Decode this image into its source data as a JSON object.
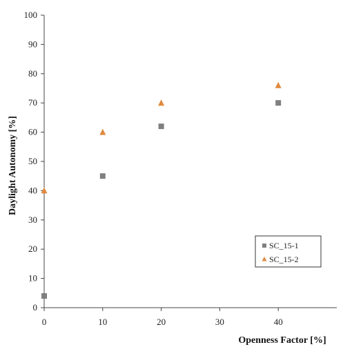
{
  "chart_data": {
    "type": "scatter",
    "title": "",
    "xlabel": "Openness Factor [%]",
    "ylabel": "Daylight Autonomy [%]",
    "xlim": [
      0,
      50
    ],
    "ylim": [
      0,
      100
    ],
    "xticks": [
      0,
      10,
      20,
      30,
      40
    ],
    "yticks": [
      0,
      10,
      20,
      30,
      40,
      50,
      60,
      70,
      80,
      90,
      100
    ],
    "grid": false,
    "legend_position": "bottom-right",
    "series": [
      {
        "name": "SC_15-1",
        "marker": "square",
        "color": "#7f7f7f",
        "points": [
          {
            "x": 0,
            "y": 4
          },
          {
            "x": 10,
            "y": 45
          },
          {
            "x": 20,
            "y": 62
          },
          {
            "x": 40,
            "y": 70
          }
        ]
      },
      {
        "name": "SC_15-2",
        "marker": "triangle",
        "color": "#e0893e",
        "points": [
          {
            "x": 0,
            "y": 40
          },
          {
            "x": 10,
            "y": 60
          },
          {
            "x": 20,
            "y": 70
          },
          {
            "x": 40,
            "y": 76
          }
        ]
      }
    ]
  }
}
